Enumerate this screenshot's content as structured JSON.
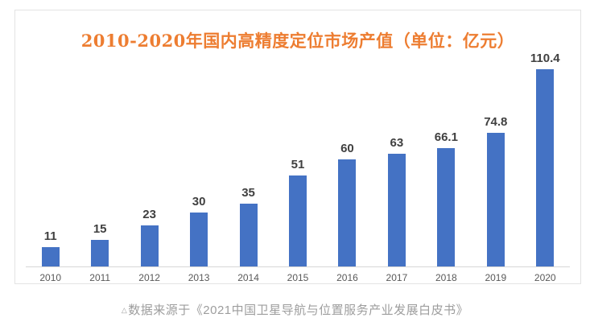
{
  "chart_data": {
    "type": "bar",
    "title": "2010-2020年国内高精度定位市场产值（单位：亿元）",
    "categories": [
      "2010",
      "2011",
      "2012",
      "2013",
      "2014",
      "2015",
      "2016",
      "2017",
      "2018",
      "2019",
      "2020"
    ],
    "values": [
      11,
      15,
      23,
      30,
      35,
      51,
      60,
      63,
      66.1,
      74.8,
      110.4
    ],
    "ylabel": "",
    "xlabel": "",
    "unit": "亿元",
    "ylim": [
      0,
      118
    ],
    "grid": false,
    "legend": "none",
    "data_labels": "above bars",
    "bar_color": "#4472C4",
    "title_color": "#ED7D31",
    "label_color": "#404040",
    "tick_color": "#595959",
    "axis_line_color": "#d6d6d6"
  },
  "caption": {
    "marker": "△",
    "text": "数据来源于《2021中国卫星导航与位置服务产业发展白皮书》"
  }
}
